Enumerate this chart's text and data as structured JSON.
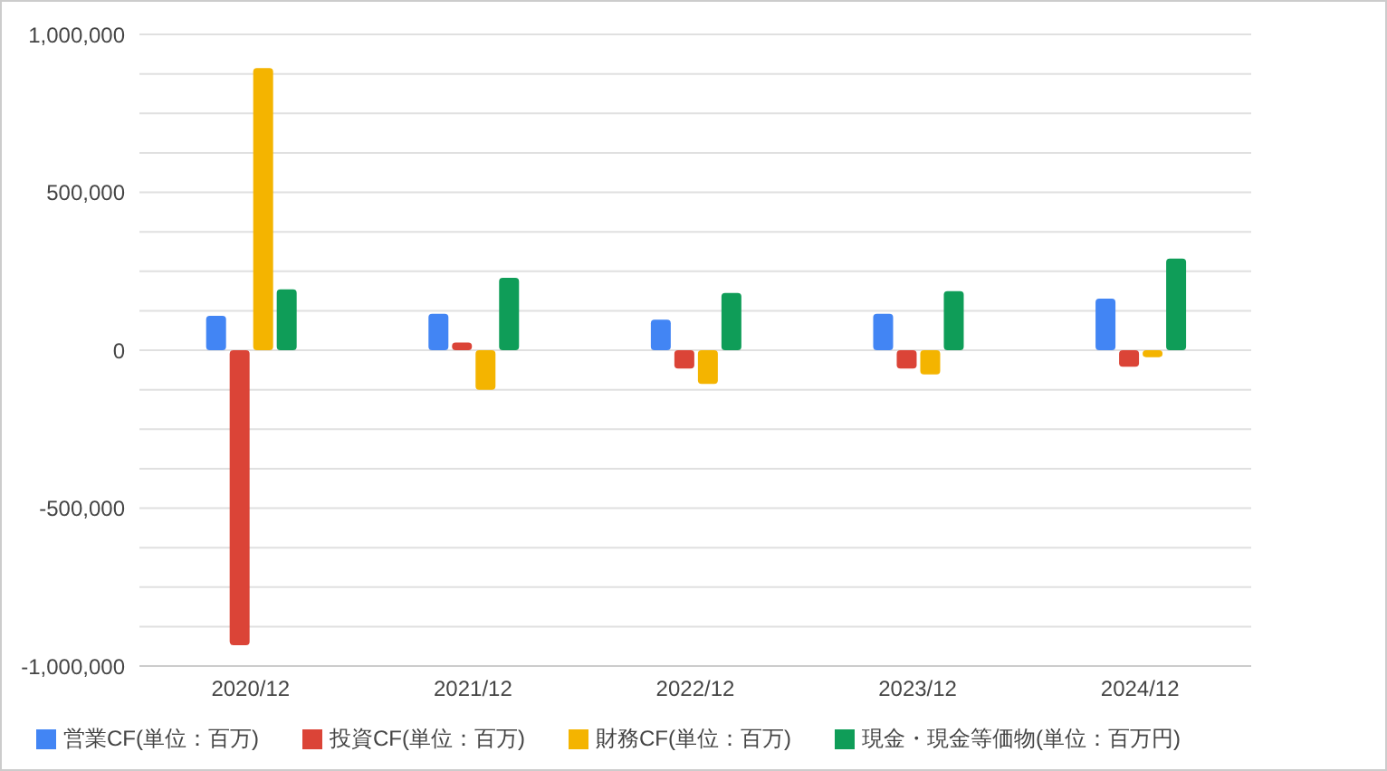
{
  "chart_data": {
    "type": "bar",
    "categories": [
      "2020/12",
      "2021/12",
      "2022/12",
      "2023/12",
      "2024/12"
    ],
    "series": [
      {
        "name": "営業CF(単位：百万)",
        "color": "#4285f4",
        "values": [
          109000,
          115000,
          97000,
          115000,
          163000
        ]
      },
      {
        "name": "投資CF(単位：百万)",
        "color": "#db4437",
        "values": [
          -934000,
          24000,
          -58000,
          -58000,
          -52000
        ]
      },
      {
        "name": "財務CF(単位：百万)",
        "color": "#f4b400",
        "values": [
          893000,
          -125000,
          -107000,
          -77000,
          -22000
        ]
      },
      {
        "name": "現金・現金等価物(単位：百万円)",
        "color": "#0f9d58",
        "values": [
          193000,
          229000,
          181000,
          187000,
          290000
        ]
      }
    ],
    "ylim": [
      -1000000,
      1000000
    ],
    "yticks": [
      {
        "value": -1000000,
        "label": "-1,000,000"
      },
      {
        "value": -875000,
        "label": null
      },
      {
        "value": -750000,
        "label": null
      },
      {
        "value": -625000,
        "label": null
      },
      {
        "value": -500000,
        "label": "-500,000"
      },
      {
        "value": -375000,
        "label": null
      },
      {
        "value": -250000,
        "label": null
      },
      {
        "value": -125000,
        "label": null
      },
      0,
      {
        "value": 125000,
        "label": null
      },
      {
        "value": 250000,
        "label": null
      },
      {
        "value": 375000,
        "label": null
      },
      {
        "value": 500000,
        "label": "500,000"
      },
      {
        "value": 625000,
        "label": null
      },
      {
        "value": 750000,
        "label": null
      },
      {
        "value": 875000,
        "label": null
      },
      {
        "value": 1000000,
        "label": "1,000,000"
      }
    ],
    "grid": "y",
    "legend": "bottom"
  }
}
